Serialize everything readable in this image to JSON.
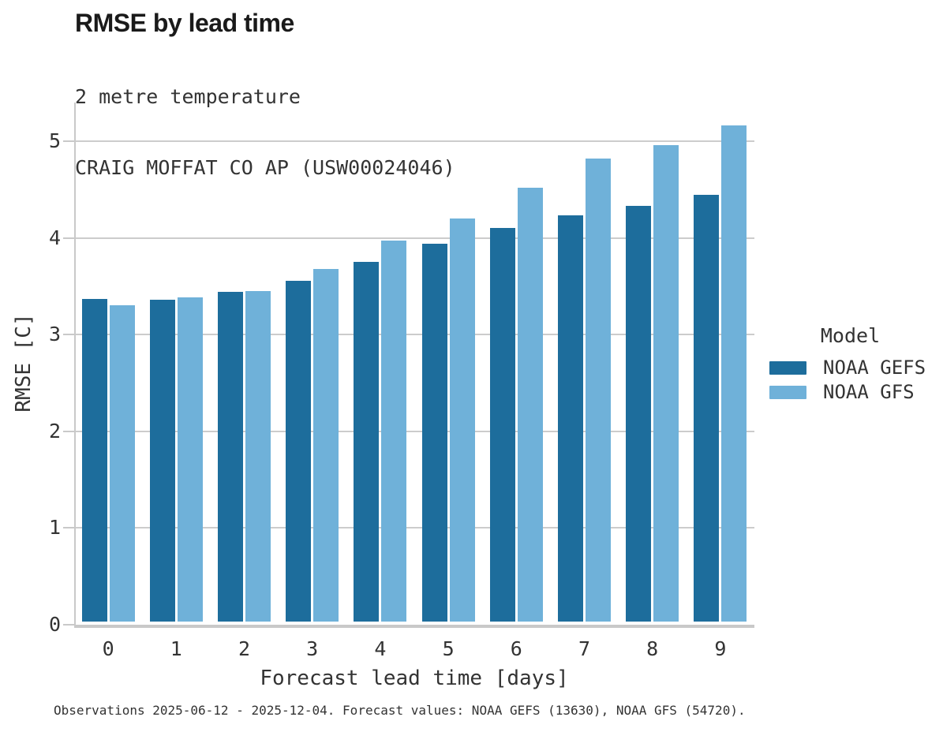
{
  "chart_data": {
    "type": "bar",
    "title": "RMSE by lead time",
    "subtitle": "2 metre temperature",
    "station": "CRAIG MOFFAT CO AP (USW00024046)",
    "xlabel": "Forecast lead time [days]",
    "ylabel": "RMSE [C]",
    "categories": [
      "0",
      "1",
      "2",
      "3",
      "4",
      "5",
      "6",
      "7",
      "8",
      "9"
    ],
    "series": [
      {
        "name": "NOAA GEFS",
        "color": "#1d6d9c",
        "values": [
          3.34,
          3.33,
          3.41,
          3.52,
          3.72,
          3.91,
          4.07,
          4.2,
          4.3,
          4.41
        ]
      },
      {
        "name": "NOAA GFS",
        "color": "#6fb1d9",
        "values": [
          3.27,
          3.35,
          3.42,
          3.65,
          3.94,
          4.17,
          4.49,
          4.79,
          4.93,
          5.13
        ]
      }
    ],
    "ylim": [
      0,
      5.4
    ],
    "yticks": [
      "0",
      "1",
      "2",
      "3",
      "4",
      "5"
    ],
    "grid": true,
    "legend_position": "right",
    "legend_title": "Model",
    "caption": "Observations 2025-06-12 - 2025-12-04. Forecast values: NOAA GEFS (13630), NOAA GFS (54720).",
    "colors": {
      "gridline": "#cccccc",
      "spine": "#c9c9c9",
      "text": "#333333"
    }
  }
}
